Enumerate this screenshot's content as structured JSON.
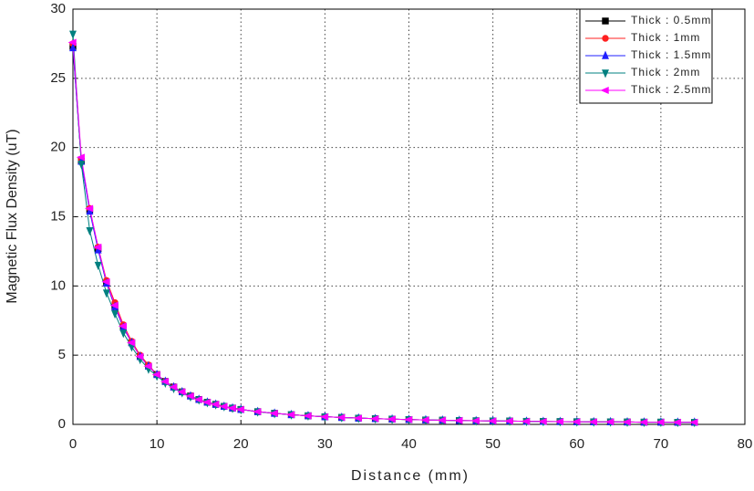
{
  "chart_data": {
    "type": "line",
    "xlabel": "Distance (mm)",
    "ylabel": "Magnetic Flux Density (uT)",
    "x": [
      0,
      1,
      2,
      3,
      4,
      5,
      6,
      7,
      8,
      9,
      10,
      11,
      12,
      13,
      14,
      15,
      16,
      17,
      18,
      19,
      20,
      22,
      24,
      26,
      28,
      30,
      32,
      34,
      36,
      38,
      40,
      42,
      44,
      46,
      48,
      50,
      52,
      54,
      56,
      58,
      60,
      62,
      64,
      66,
      68,
      70,
      72,
      74
    ],
    "series": [
      {
        "name": "Thick : 0.5mm",
        "color": "#000000",
        "marker": "square",
        "values": [
          27.3,
          19.0,
          15.5,
          12.7,
          10.2,
          8.5,
          7.0,
          5.9,
          4.9,
          4.2,
          3.6,
          3.1,
          2.7,
          2.35,
          2.05,
          1.8,
          1.6,
          1.45,
          1.3,
          1.18,
          1.08,
          0.92,
          0.8,
          0.7,
          0.62,
          0.55,
          0.5,
          0.45,
          0.41,
          0.38,
          0.35,
          0.32,
          0.3,
          0.28,
          0.26,
          0.25,
          0.24,
          0.22,
          0.21,
          0.2,
          0.19,
          0.18,
          0.18,
          0.17,
          0.16,
          0.16,
          0.15,
          0.15
        ]
      },
      {
        "name": "Thick : 1mm",
        "color": "#ff2020",
        "marker": "circle",
        "values": [
          27.5,
          19.1,
          15.6,
          12.8,
          10.4,
          8.8,
          7.2,
          6.0,
          5.0,
          4.3,
          3.6,
          3.1,
          2.7,
          2.35,
          2.05,
          1.8,
          1.6,
          1.45,
          1.3,
          1.18,
          1.08,
          0.92,
          0.8,
          0.7,
          0.62,
          0.55,
          0.5,
          0.45,
          0.41,
          0.38,
          0.35,
          0.32,
          0.3,
          0.28,
          0.26,
          0.25,
          0.24,
          0.22,
          0.21,
          0.2,
          0.19,
          0.18,
          0.18,
          0.17,
          0.16,
          0.16,
          0.15,
          0.15
        ]
      },
      {
        "name": "Thick : 1.5mm",
        "color": "#2020ff",
        "marker": "triangle-up",
        "values": [
          27.2,
          19.0,
          15.4,
          12.6,
          10.2,
          8.5,
          7.0,
          5.9,
          4.9,
          4.2,
          3.6,
          3.1,
          2.7,
          2.35,
          2.05,
          1.8,
          1.6,
          1.45,
          1.3,
          1.18,
          1.08,
          0.92,
          0.8,
          0.7,
          0.62,
          0.55,
          0.5,
          0.45,
          0.41,
          0.38,
          0.35,
          0.32,
          0.3,
          0.28,
          0.26,
          0.25,
          0.24,
          0.22,
          0.21,
          0.2,
          0.19,
          0.18,
          0.18,
          0.17,
          0.16,
          0.16,
          0.15,
          0.15
        ]
      },
      {
        "name": "Thick : 2mm",
        "color": "#008080",
        "marker": "triangle-down",
        "values": [
          28.2,
          18.8,
          14.0,
          11.5,
          9.5,
          8.0,
          6.6,
          5.6,
          4.7,
          4.0,
          3.5,
          3.0,
          2.6,
          2.3,
          2.0,
          1.78,
          1.58,
          1.43,
          1.29,
          1.17,
          1.07,
          0.91,
          0.79,
          0.7,
          0.62,
          0.55,
          0.5,
          0.45,
          0.41,
          0.38,
          0.35,
          0.32,
          0.3,
          0.28,
          0.26,
          0.25,
          0.24,
          0.22,
          0.21,
          0.2,
          0.19,
          0.18,
          0.18,
          0.17,
          0.16,
          0.16,
          0.15,
          0.15
        ]
      },
      {
        "name": "Thick : 2.5mm",
        "color": "#ff00ff",
        "marker": "triangle-left",
        "values": [
          27.6,
          19.3,
          15.6,
          12.8,
          10.3,
          8.6,
          7.1,
          5.9,
          4.9,
          4.2,
          3.6,
          3.1,
          2.7,
          2.35,
          2.05,
          1.8,
          1.6,
          1.45,
          1.3,
          1.18,
          1.08,
          0.92,
          0.8,
          0.7,
          0.62,
          0.55,
          0.5,
          0.45,
          0.41,
          0.38,
          0.35,
          0.32,
          0.3,
          0.28,
          0.26,
          0.25,
          0.24,
          0.22,
          0.21,
          0.2,
          0.19,
          0.18,
          0.18,
          0.17,
          0.16,
          0.16,
          0.15,
          0.15
        ]
      }
    ],
    "xlim": [
      0,
      80
    ],
    "xticks": [
      0,
      10,
      20,
      30,
      40,
      50,
      60,
      70,
      80
    ],
    "ylim": [
      0,
      30
    ],
    "yticks": [
      0,
      5,
      10,
      15,
      20,
      25,
      30
    ],
    "grid": true,
    "legend": "top-right"
  }
}
